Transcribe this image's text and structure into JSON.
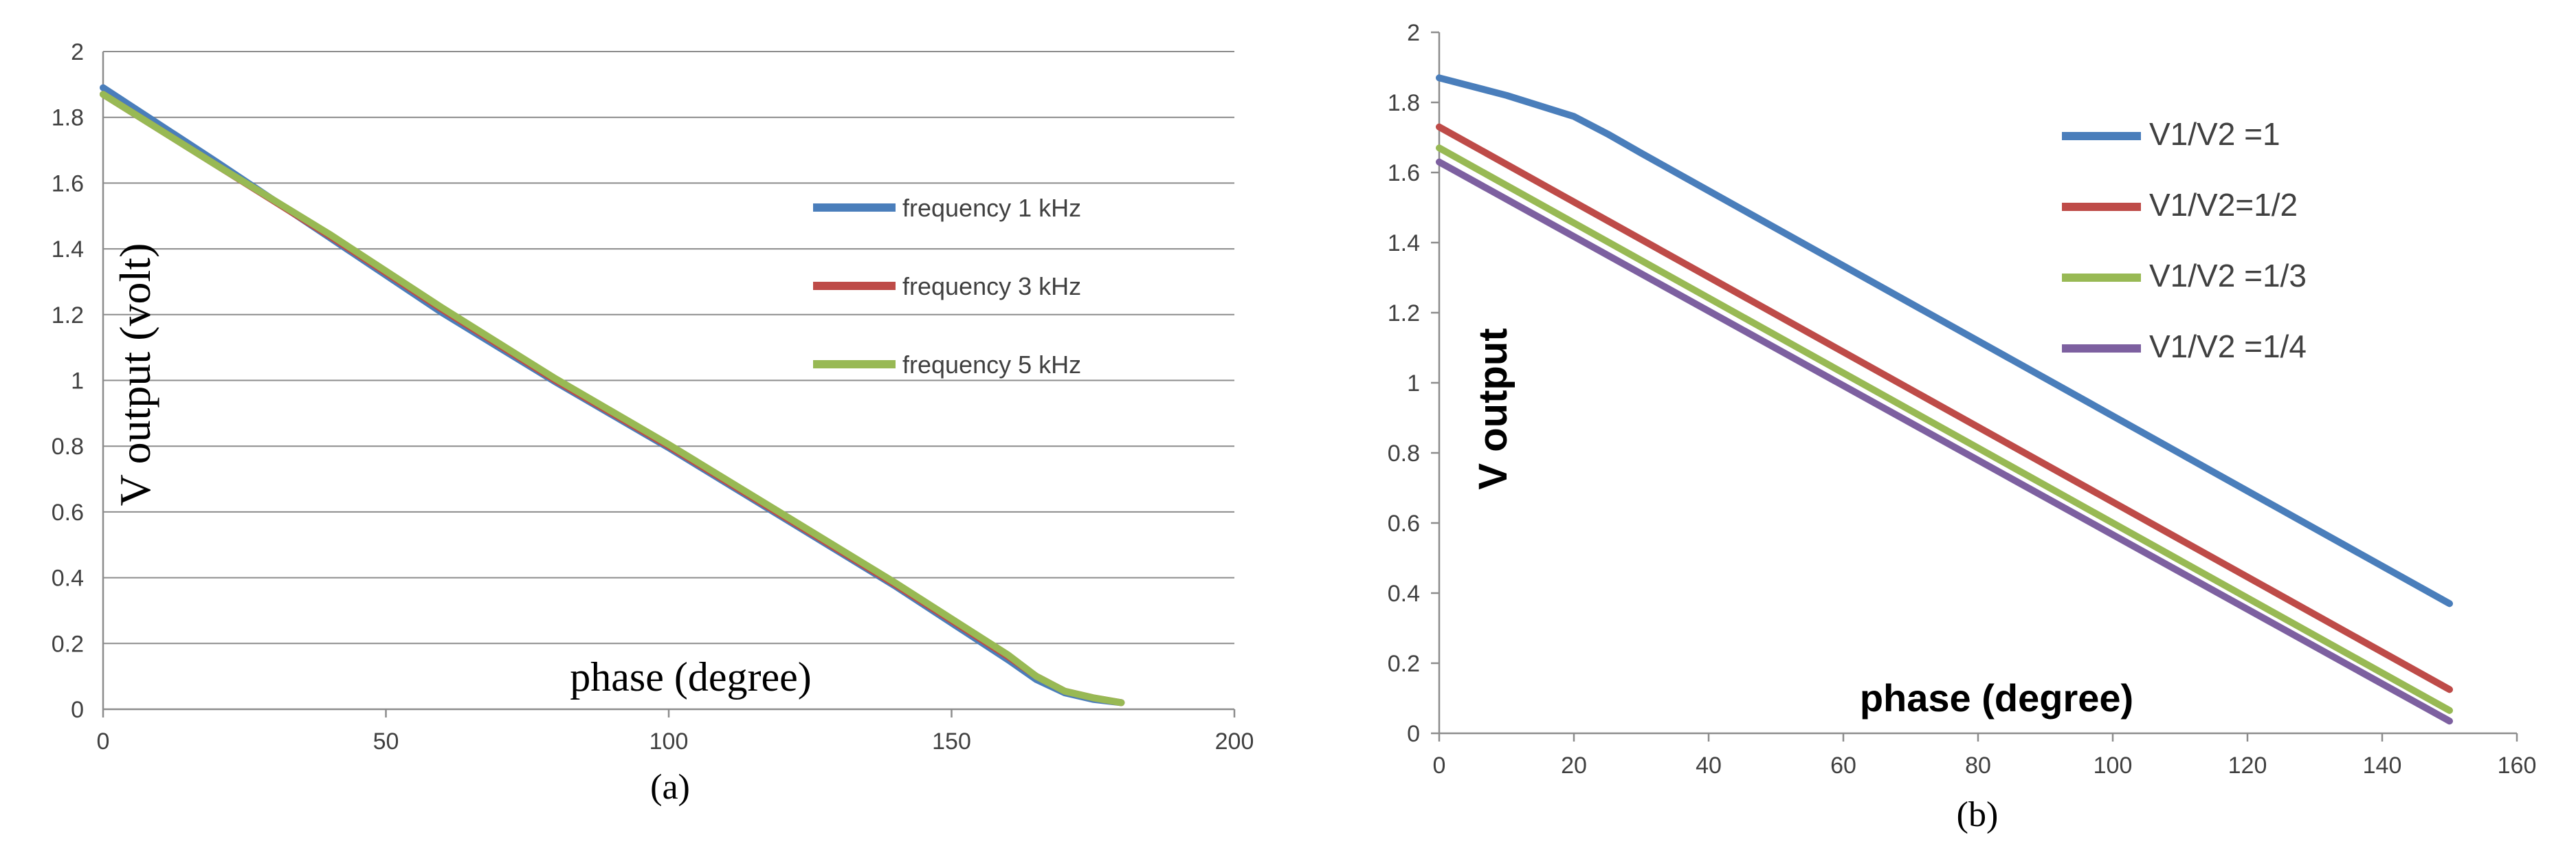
{
  "chart_data": [
    {
      "type": "line",
      "panel_label": "(a)",
      "xlabel": "phase (degree)",
      "ylabel": "V output (volt)",
      "xlim": [
        0,
        200
      ],
      "ylim": [
        0,
        2
      ],
      "grid": "horizontal",
      "legend_position": "center-right",
      "x_ticks": [
        "0",
        "50",
        "100",
        "150",
        "200"
      ],
      "y_ticks": [
        "0",
        "0.2",
        "0.4",
        "0.6",
        "0.8",
        "1",
        "1.2",
        "1.4",
        "1.6",
        "1.8",
        "2"
      ],
      "series": [
        {
          "name": "frequency 1 kHz",
          "color": "#4a7ebb",
          "x": [
            0,
            20,
            40,
            60,
            80,
            100,
            120,
            140,
            160,
            165,
            170,
            175,
            180
          ],
          "y": [
            1.89,
            1.665,
            1.435,
            1.205,
            0.995,
            0.795,
            0.585,
            0.375,
            0.15,
            0.09,
            0.05,
            0.03,
            0.02
          ]
        },
        {
          "name": "frequency 3 kHz",
          "color": "#be4b48",
          "x": [
            0,
            20,
            40,
            60,
            80,
            100,
            120,
            140,
            160,
            165,
            170,
            175,
            180
          ],
          "y": [
            1.87,
            1.655,
            1.44,
            1.215,
            1.0,
            0.8,
            0.59,
            0.38,
            0.16,
            0.1,
            0.055,
            0.035,
            0.02
          ]
        },
        {
          "name": "frequency 5 kHz",
          "color": "#98b954",
          "x": [
            0,
            20,
            40,
            60,
            80,
            100,
            120,
            140,
            160,
            165,
            170,
            175,
            180
          ],
          "y": [
            1.87,
            1.655,
            1.445,
            1.22,
            1.005,
            0.805,
            0.595,
            0.385,
            0.165,
            0.1,
            0.055,
            0.035,
            0.02
          ]
        }
      ]
    },
    {
      "type": "line",
      "panel_label": "(b)",
      "xlabel": "phase (degree)",
      "ylabel": "V output",
      "xlim": [
        0,
        160
      ],
      "ylim": [
        0,
        2
      ],
      "grid": "none",
      "legend_position": "top-right",
      "x_ticks": [
        "0",
        "20",
        "40",
        "60",
        "80",
        "100",
        "120",
        "140",
        "160"
      ],
      "y_ticks": [
        "0",
        "0.2",
        "0.4",
        "0.6",
        "0.8",
        "1",
        "1.2",
        "1.4",
        "1.6",
        "1.8",
        "2"
      ],
      "series": [
        {
          "name": "V1/V2 =1",
          "color": "#4a7ebb",
          "x": [
            0,
            10,
            20,
            25,
            30,
            150
          ],
          "y": [
            1.87,
            1.82,
            1.76,
            1.71,
            1.655,
            0.37
          ]
        },
        {
          "name": "V1/V2=1/2",
          "color": "#be4b48",
          "x": [
            0,
            150
          ],
          "y": [
            1.73,
            0.125
          ]
        },
        {
          "name": "V1/V2 =1/3",
          "color": "#98b954",
          "x": [
            0,
            150
          ],
          "y": [
            1.67,
            0.065
          ]
        },
        {
          "name": "V1/V2 =1/4",
          "color": "#7d60a0",
          "x": [
            0,
            150
          ],
          "y": [
            1.63,
            0.035
          ]
        }
      ]
    }
  ]
}
